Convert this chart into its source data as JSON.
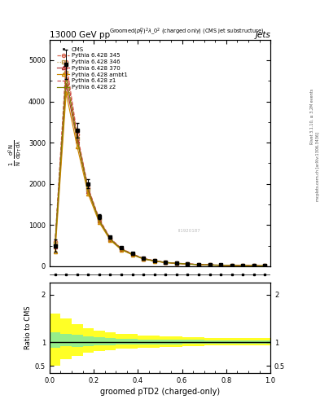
{
  "title_top": "13000 GeV pp",
  "title_right": "Jets",
  "xlabel": "groomed pTD2 (charged-only)",
  "ylabel_ratio": "Ratio to CMS",
  "right_label1": "Rivet 3.1.10, ≥ 3.2M events",
  "right_label2": "mcplots.cern.ch [arXiv:1306.3436]",
  "x_data": [
    0.025,
    0.075,
    0.125,
    0.175,
    0.225,
    0.275,
    0.325,
    0.375,
    0.425,
    0.475,
    0.525,
    0.575,
    0.625,
    0.675,
    0.725,
    0.775,
    0.825,
    0.875,
    0.925,
    0.975
  ],
  "cms_y": [
    500,
    4900,
    3300,
    2000,
    1200,
    700,
    450,
    320,
    200,
    140,
    100,
    80,
    60,
    45,
    35,
    28,
    22,
    18,
    14,
    11
  ],
  "cms_yerr": [
    150,
    350,
    180,
    110,
    65,
    38,
    22,
    16,
    11,
    7,
    5,
    4,
    3.5,
    3,
    2.5,
    2,
    1.5,
    1.3,
    1.0,
    0.9
  ],
  "p345_y": [
    600,
    4950,
    3200,
    1900,
    1150,
    680,
    430,
    300,
    190,
    135,
    95,
    75,
    58,
    42,
    33,
    26,
    20,
    16,
    13,
    10
  ],
  "p346_y": [
    550,
    4700,
    3100,
    1850,
    1120,
    660,
    420,
    290,
    185,
    130,
    93,
    72,
    56,
    41,
    32,
    25,
    19,
    15,
    12,
    9.5
  ],
  "p370_y": [
    480,
    4400,
    3050,
    1820,
    1100,
    650,
    410,
    285,
    180,
    128,
    91,
    70,
    54,
    40,
    31,
    24,
    19,
    15,
    12,
    9.2
  ],
  "pambt1_y": [
    350,
    4200,
    2900,
    1750,
    1060,
    630,
    400,
    278,
    175,
    124,
    88,
    68,
    52,
    38,
    30,
    23,
    18,
    14,
    11,
    8.8
  ],
  "pz1_y": [
    580,
    4800,
    3150,
    1880,
    1130,
    670,
    425,
    295,
    188,
    132,
    94,
    73,
    57,
    42,
    32,
    25,
    20,
    16,
    12,
    9.8
  ],
  "pz2_y": [
    540,
    4600,
    3080,
    1840,
    1110,
    655,
    415,
    288,
    182,
    129,
    92,
    71,
    55,
    40,
    31,
    24,
    19,
    15,
    12,
    9.3
  ],
  "ratio_x_edges": [
    0.0,
    0.05,
    0.1,
    0.15,
    0.2,
    0.25,
    0.3,
    0.4,
    0.5,
    0.6,
    0.7,
    0.8,
    0.9,
    1.0
  ],
  "green_band_lo": [
    0.88,
    0.92,
    0.9,
    0.92,
    0.93,
    0.94,
    0.95,
    0.96,
    0.96,
    0.97,
    0.97,
    0.97,
    0.97
  ],
  "green_band_hi": [
    1.2,
    1.18,
    1.15,
    1.12,
    1.1,
    1.08,
    1.07,
    1.06,
    1.05,
    1.05,
    1.04,
    1.04,
    1.04
  ],
  "yellow_band_lo": [
    0.5,
    0.65,
    0.72,
    0.78,
    0.82,
    0.84,
    0.86,
    0.88,
    0.9,
    0.92,
    0.93,
    0.94,
    0.93
  ],
  "yellow_band_hi": [
    1.6,
    1.5,
    1.38,
    1.3,
    1.25,
    1.2,
    1.17,
    1.14,
    1.13,
    1.11,
    1.09,
    1.08,
    1.08
  ],
  "color_345": "#d4604a",
  "color_346": "#b8964a",
  "color_370": "#b03030",
  "color_ambt1": "#cc8800",
  "color_z1": "#cc4444",
  "color_z2": "#808000",
  "color_cms": "black",
  "ylim_main": [
    0,
    5500
  ],
  "yticks_main": [
    0,
    1000,
    2000,
    3000,
    4000,
    5000
  ],
  "ylim_ratio": [
    0.35,
    2.25
  ],
  "yticks_ratio": [
    0.5,
    1.0,
    2.0
  ],
  "background_color": "#ffffff"
}
